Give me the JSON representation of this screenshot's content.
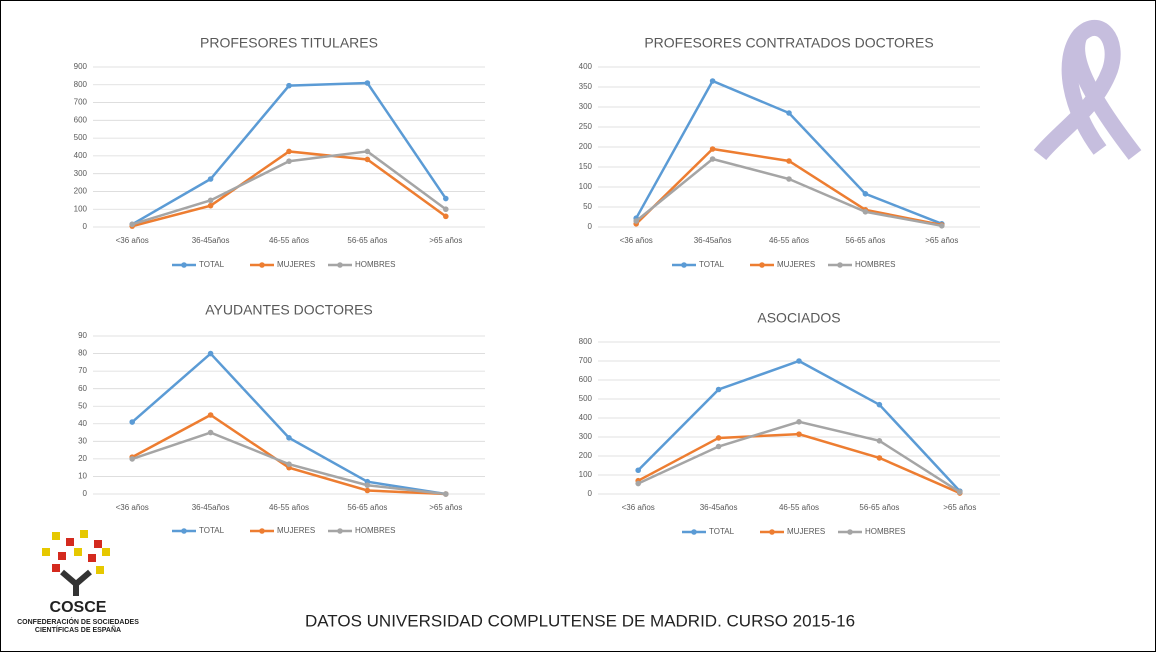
{
  "chart_data": [
    {
      "type": "line",
      "title": "PROFESORES TITULARES",
      "categories": [
        "<36 años",
        "36-45años",
        "46-55 años",
        "56-65 años",
        ">65 años"
      ],
      "ylim": [
        0,
        900
      ],
      "yticks": [
        0,
        100,
        200,
        300,
        400,
        500,
        600,
        700,
        800,
        900
      ],
      "grid": true,
      "legend": "bottom",
      "series": [
        {
          "name": "TOTAL",
          "color": "#5b9bd5",
          "values": [
            15,
            270,
            795,
            810,
            160
          ]
        },
        {
          "name": "MUJERES",
          "color": "#ed7d31",
          "values": [
            5,
            120,
            425,
            380,
            60
          ]
        },
        {
          "name": "HOMBRES",
          "color": "#a5a5a5",
          "values": [
            15,
            150,
            370,
            425,
            100
          ]
        }
      ]
    },
    {
      "type": "line",
      "title": "PROFESORES CONTRATADOS DOCTORES",
      "categories": [
        "<36 años",
        "36-45años",
        "46-55 años",
        "56-65 años",
        ">65 años"
      ],
      "ylim": [
        0,
        400
      ],
      "yticks": [
        0,
        50,
        100,
        150,
        200,
        250,
        300,
        350,
        400
      ],
      "grid": true,
      "legend": "bottom",
      "series": [
        {
          "name": "TOTAL",
          "color": "#5b9bd5",
          "values": [
            22,
            365,
            285,
            83,
            8
          ]
        },
        {
          "name": "MUJERES",
          "color": "#ed7d31",
          "values": [
            8,
            195,
            165,
            43,
            5
          ]
        },
        {
          "name": "HOMBRES",
          "color": "#a5a5a5",
          "values": [
            15,
            170,
            120,
            38,
            3
          ]
        }
      ]
    },
    {
      "type": "line",
      "title": "AYUDANTES DOCTORES",
      "categories": [
        "<36 años",
        "36-45años",
        "46-55 años",
        "56-65 años",
        ">65 años"
      ],
      "ylim": [
        0,
        90
      ],
      "yticks": [
        0,
        10,
        20,
        30,
        40,
        50,
        60,
        70,
        80,
        90
      ],
      "grid": true,
      "legend": "bottom",
      "series": [
        {
          "name": "TOTAL",
          "color": "#5b9bd5",
          "values": [
            41,
            80,
            32,
            7,
            0
          ]
        },
        {
          "name": "MUJERES",
          "color": "#ed7d31",
          "values": [
            21,
            45,
            15,
            2,
            0
          ]
        },
        {
          "name": "HOMBRES",
          "color": "#a5a5a5",
          "values": [
            20,
            35,
            17,
            5,
            0
          ]
        }
      ]
    },
    {
      "type": "line",
      "title": "ASOCIADOS",
      "categories": [
        "<36 años",
        "36-45años",
        "46-55 años",
        "56-65 años",
        ">65 años"
      ],
      "ylim": [
        0,
        800
      ],
      "yticks": [
        0,
        100,
        200,
        300,
        400,
        500,
        600,
        700,
        800
      ],
      "grid": true,
      "legend": "bottom",
      "series": [
        {
          "name": "TOTAL",
          "color": "#5b9bd5",
          "values": [
            125,
            550,
            700,
            470,
            15
          ]
        },
        {
          "name": "MUJERES",
          "color": "#ed7d31",
          "values": [
            70,
            295,
            315,
            190,
            5
          ]
        },
        {
          "name": "HOMBRES",
          "color": "#a5a5a5",
          "values": [
            55,
            250,
            380,
            280,
            10
          ]
        }
      ]
    }
  ],
  "footer": "DATOS UNIVERSIDAD COMPLUTENSE DE MADRID. CURSO 2015-16",
  "logo": {
    "name": "COSCE",
    "line1": "CONFEDERACIÓN DE SOCIEDADES",
    "line2": "CIENTÍFICAS DE ESPAÑA"
  }
}
